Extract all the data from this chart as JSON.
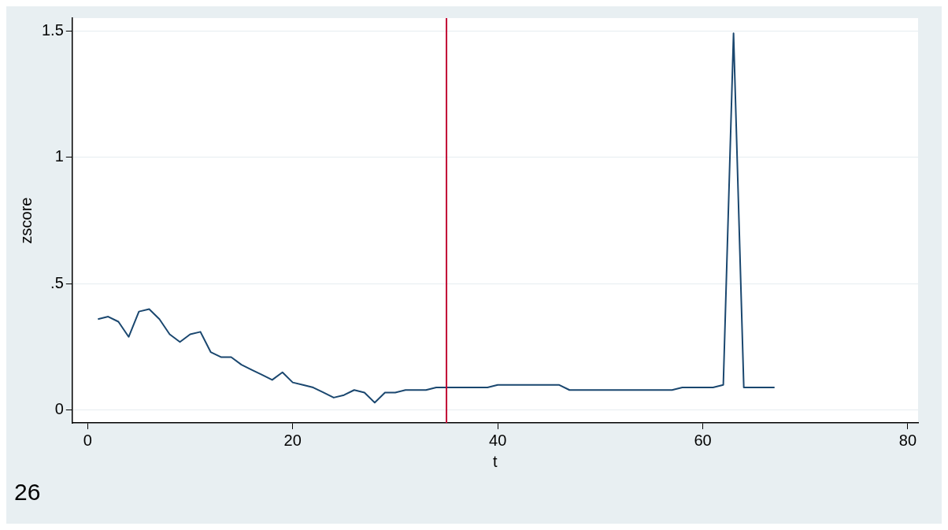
{
  "chart_data": {
    "type": "line",
    "title": "26",
    "xlabel": "t",
    "ylabel": "zscore",
    "x": [
      1,
      2,
      3,
      4,
      5,
      6,
      7,
      8,
      9,
      10,
      11,
      12,
      13,
      14,
      15,
      16,
      17,
      18,
      19,
      20,
      21,
      22,
      23,
      24,
      25,
      26,
      27,
      28,
      29,
      30,
      31,
      32,
      33,
      34,
      35,
      36,
      37,
      38,
      39,
      40,
      41,
      42,
      43,
      44,
      45,
      46,
      47,
      48,
      49,
      50,
      51,
      52,
      53,
      54,
      55,
      56,
      57,
      58,
      59,
      60,
      61,
      62,
      63,
      64,
      65,
      66,
      67
    ],
    "series": [
      {
        "color": "#1a476f",
        "values": [
          0.36,
          0.37,
          0.35,
          0.29,
          0.39,
          0.4,
          0.36,
          0.3,
          0.27,
          0.3,
          0.31,
          0.23,
          0.21,
          0.21,
          0.18,
          0.16,
          0.14,
          0.12,
          0.15,
          0.11,
          0.1,
          0.09,
          0.07,
          0.05,
          0.06,
          0.08,
          0.07,
          0.03,
          0.07,
          0.07,
          0.08,
          0.08,
          0.08,
          0.09,
          0.09,
          0.09,
          0.09,
          0.09,
          0.09,
          0.1,
          0.1,
          0.1,
          0.1,
          0.1,
          0.1,
          0.1,
          0.08,
          0.08,
          0.08,
          0.08,
          0.08,
          0.08,
          0.08,
          0.08,
          0.08,
          0.08,
          0.08,
          0.09,
          0.09,
          0.09,
          0.09,
          0.1,
          1.49,
          0.09,
          0.09,
          0.09,
          0.09
        ]
      }
    ],
    "xlim": [
      -1.5,
      81
    ],
    "xticks": [
      0,
      20,
      40,
      60,
      80
    ],
    "ylim": [
      -0.05,
      1.55
    ],
    "yticks": [
      {
        "value": 0,
        "label": "0"
      },
      {
        "value": 0.5,
        "label": ".5"
      },
      {
        "value": 1,
        "label": "1"
      },
      {
        "value": 1.5,
        "label": "1.5"
      }
    ],
    "ref_lines": [
      {
        "axis": "x",
        "value": 35,
        "color": "#c10534"
      }
    ],
    "grid": "y",
    "legend": false,
    "marker": "none",
    "line_style": "solid"
  }
}
